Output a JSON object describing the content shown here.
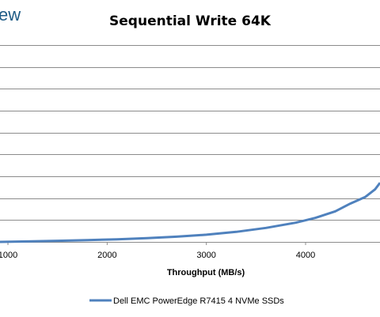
{
  "logo": {
    "text": "ew"
  },
  "chart_data": {
    "type": "line",
    "title": "Sequential Write 64K",
    "xlabel": "Throughput (MB/s)",
    "ylabel": "",
    "x_ticks": [
      1000,
      2000,
      3000,
      4000
    ],
    "xlim": [
      920,
      4750
    ],
    "ylim": [
      0,
      9
    ],
    "grid": true,
    "legend_position": "bottom",
    "series": [
      {
        "name": "Dell EMC PowerEdge R7415 4 NVMe SSDs",
        "color": "#4f81bd",
        "x": [
          920,
          1200,
          1500,
          1800,
          2100,
          2400,
          2700,
          3000,
          3300,
          3600,
          3900,
          4100,
          4300,
          4450,
          4600,
          4700,
          4750
        ],
        "y": [
          0.0,
          0.02,
          0.05,
          0.08,
          0.12,
          0.17,
          0.24,
          0.33,
          0.46,
          0.64,
          0.88,
          1.1,
          1.4,
          1.75,
          2.05,
          2.4,
          2.7
        ]
      }
    ]
  }
}
